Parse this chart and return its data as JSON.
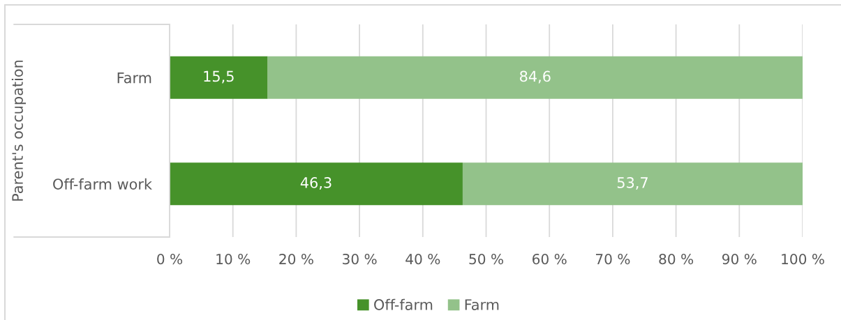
{
  "chart_data": {
    "type": "bar",
    "orientation": "horizontal",
    "stacked": true,
    "ylabel": "Parent's occupation",
    "categories": [
      "Farm",
      "Off-farm work"
    ],
    "series": [
      {
        "name": "Off-farm",
        "color": "#46922a",
        "values": [
          15.5,
          46.3
        ],
        "value_labels": [
          "15,5",
          "46,3"
        ]
      },
      {
        "name": "Farm",
        "color": "#93c28a",
        "values": [
          84.6,
          53.7
        ],
        "value_labels": [
          "84,6",
          "53,7"
        ]
      }
    ],
    "xlim": [
      0,
      100
    ],
    "xticks": [
      {
        "value": 0,
        "label": "0 %"
      },
      {
        "value": 10,
        "label": "10 %"
      },
      {
        "value": 20,
        "label": "20 %"
      },
      {
        "value": 30,
        "label": "30 %"
      },
      {
        "value": 40,
        "label": "40 %"
      },
      {
        "value": 50,
        "label": "50 %"
      },
      {
        "value": 60,
        "label": "60 %"
      },
      {
        "value": 70,
        "label": "70 %"
      },
      {
        "value": 80,
        "label": "80 %"
      },
      {
        "value": 90,
        "label": "90 %"
      },
      {
        "value": 100,
        "label": "100 %"
      }
    ],
    "grid": "x",
    "legend": "bottom"
  }
}
